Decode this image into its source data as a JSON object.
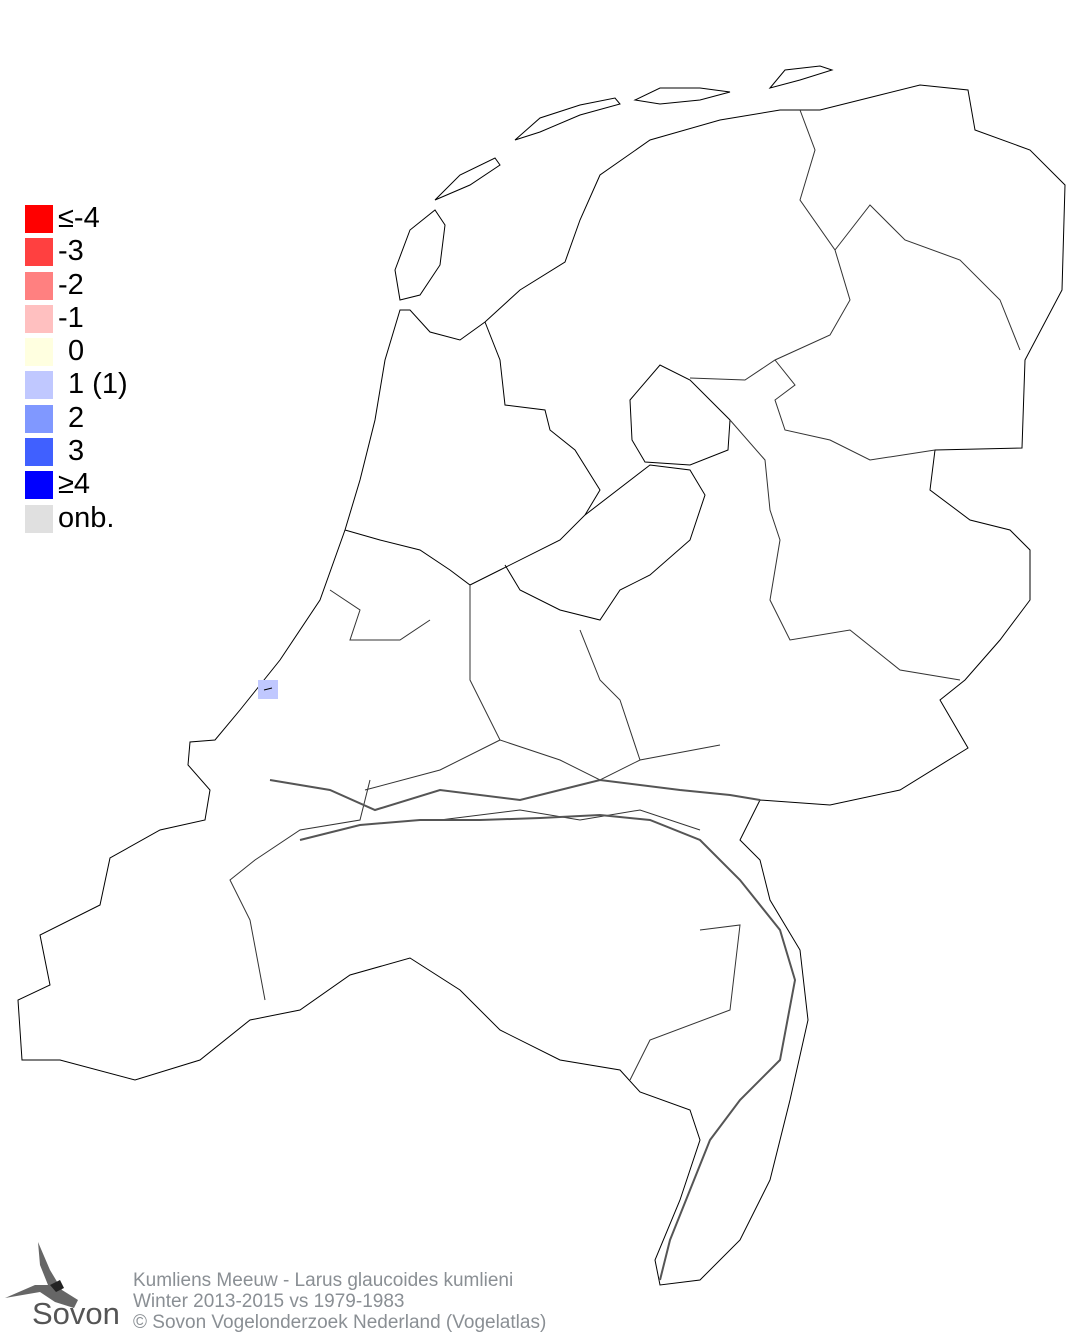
{
  "legend": {
    "items": [
      {
        "label": "≤-4",
        "color": "#ff0000"
      },
      {
        "label": "-3",
        "color": "#ff4040"
      },
      {
        "label": "-2",
        "color": "#ff8080"
      },
      {
        "label": "-1",
        "color": "#ffc0c0"
      },
      {
        "label": "0",
        "color": "#ffffe0"
      },
      {
        "label": "1 (1)",
        "color": "#c0c8ff"
      },
      {
        "label": "2",
        "color": "#8098ff"
      },
      {
        "label": "3",
        "color": "#4060ff"
      },
      {
        "label": "≥4",
        "color": "#0000ff"
      },
      {
        "label": "onb.",
        "color": "#e0e0e0"
      }
    ]
  },
  "map": {
    "region": "Netherlands",
    "cells": [
      {
        "class": "1",
        "color": "#c0c8ff",
        "count": 1
      }
    ]
  },
  "footer": {
    "species": "Kumliens Meeuw - Larus glaucoides kumlieni",
    "period": "Winter 2013-2015 vs 1979-1983",
    "copyright": "© Sovon Vogelonderzoek Nederland (Vogelatlas)"
  },
  "logo": {
    "text": "Sovon"
  }
}
